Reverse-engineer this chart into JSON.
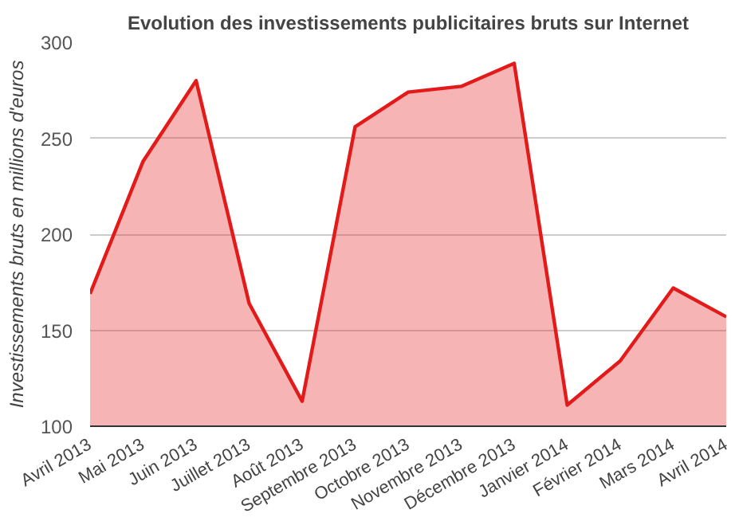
{
  "chart_data": {
    "type": "area",
    "title": "Evolution des investissements publicitaires bruts sur Internet",
    "ylabel": "Investissements bruts en millions d'euros",
    "categories": [
      "Avril 2013",
      "Mai 2013",
      "Juin 2013",
      "Juillet 2013",
      "Août 2013",
      "Septembre 2013",
      "Octobre 2013",
      "Novembre 2013",
      "Décembre 2013",
      "Janvier 2014",
      "Février 2014",
      "Mars 2014",
      "Avril 2014"
    ],
    "series": [
      {
        "color": "#e31a1a",
        "values": [
          169,
          238,
          280,
          164,
          113,
          256,
          274,
          277,
          289,
          111,
          134,
          172,
          157
        ]
      }
    ],
    "ylim": [
      100,
      300
    ],
    "yticks": [
      100,
      150,
      200,
      250,
      300
    ],
    "grid": "y"
  }
}
